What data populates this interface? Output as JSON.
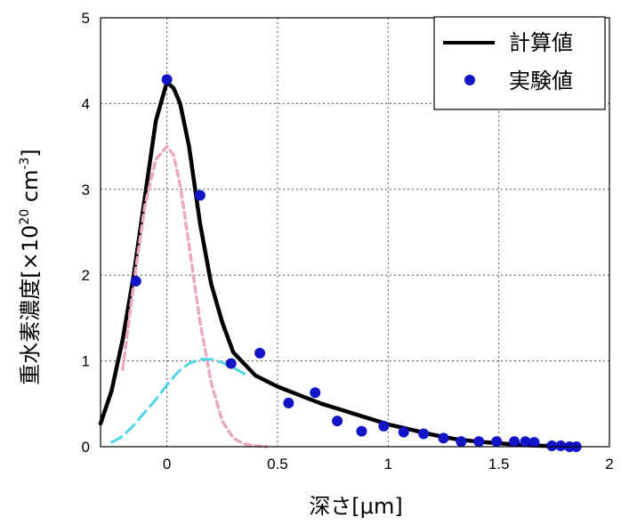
{
  "chart_data": {
    "type": "line",
    "xlabel": "深さ[μm]",
    "ylabel": {
      "prefix": "重水素濃度[×10",
      "exp1": "20",
      "mid": " cm",
      "exp2": "-3",
      "suffix": "]"
    },
    "xlim": [
      -0.3,
      2.0
    ],
    "ylim": [
      0,
      5
    ],
    "xticks": [
      "0",
      "0.5",
      "1",
      "1.5",
      "2"
    ],
    "yticks": [
      "0",
      "1",
      "2",
      "3",
      "4",
      "5"
    ],
    "grid": true,
    "legend_position": "top-right",
    "legend": [
      {
        "label": "計算値",
        "marker": "line"
      },
      {
        "label": "実験値",
        "marker": "dot"
      }
    ],
    "series": [
      {
        "name": "計算値",
        "style": "solid",
        "color": "#000000",
        "x": [
          -0.3,
          -0.25,
          -0.2,
          -0.15,
          -0.1,
          -0.05,
          0.0,
          0.03,
          0.06,
          0.1,
          0.15,
          0.2,
          0.25,
          0.3,
          0.4,
          0.5,
          0.6,
          0.7,
          0.8,
          0.9,
          1.0,
          1.1,
          1.2,
          1.3,
          1.4,
          1.5,
          1.6,
          1.7,
          1.8,
          1.85
        ],
        "y": [
          0.27,
          0.65,
          1.25,
          2.0,
          2.9,
          3.8,
          4.25,
          4.18,
          4.0,
          3.5,
          2.6,
          1.9,
          1.45,
          1.1,
          0.83,
          0.7,
          0.6,
          0.5,
          0.42,
          0.34,
          0.26,
          0.2,
          0.14,
          0.09,
          0.06,
          0.04,
          0.02,
          0.01,
          0.005,
          0.0
        ]
      },
      {
        "name": "",
        "style": "dashed",
        "color": "#e9a8c4",
        "x": [
          -0.2,
          -0.15,
          -0.1,
          -0.05,
          0.0,
          0.03,
          0.06,
          0.1,
          0.15,
          0.2,
          0.25,
          0.3,
          0.35,
          0.4,
          0.45
        ],
        "y": [
          0.9,
          1.9,
          2.8,
          3.35,
          3.5,
          3.4,
          3.05,
          2.35,
          1.45,
          0.75,
          0.3,
          0.1,
          0.03,
          0.01,
          0.0
        ]
      },
      {
        "name": "",
        "style": "dashed",
        "color": "#4fd6e6",
        "x": [
          -0.25,
          -0.2,
          -0.15,
          -0.1,
          -0.05,
          0.0,
          0.05,
          0.1,
          0.15,
          0.2,
          0.25,
          0.3,
          0.35
        ],
        "y": [
          0.05,
          0.12,
          0.25,
          0.4,
          0.55,
          0.72,
          0.87,
          0.97,
          1.02,
          1.02,
          0.98,
          0.92,
          0.85
        ]
      },
      {
        "name": "実験値",
        "style": "markers",
        "color": "#1313c8",
        "x": [
          -0.14,
          0.0,
          0.15,
          0.29,
          0.42,
          0.55,
          0.67,
          0.77,
          0.88,
          0.98,
          1.07,
          1.16,
          1.25,
          1.33,
          1.41,
          1.49,
          1.57,
          1.62,
          1.66,
          1.74,
          1.78,
          1.82,
          1.85
        ],
        "y": [
          1.93,
          4.28,
          2.93,
          0.97,
          1.09,
          0.51,
          0.63,
          0.3,
          0.18,
          0.24,
          0.17,
          0.15,
          0.1,
          0.06,
          0.06,
          0.06,
          0.06,
          0.06,
          0.05,
          0.01,
          0.01,
          0.0,
          0.0
        ]
      }
    ]
  }
}
